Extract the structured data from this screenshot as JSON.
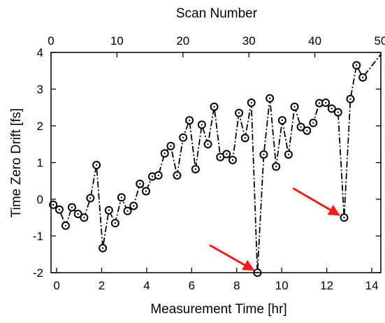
{
  "chart_data": {
    "type": "line",
    "title": "",
    "xlabel": "Measurement Time [hr]",
    "ylabel": "Time Zero Drift [fs]",
    "x2label": "Scan Number",
    "xlim": [
      -0.25,
      14.4
    ],
    "ylim": [
      -2,
      4
    ],
    "x2lim": [
      0,
      50
    ],
    "xticks": [
      0,
      2,
      4,
      6,
      8,
      10,
      12,
      14
    ],
    "yticks": [
      -2,
      -1,
      0,
      1,
      2,
      3,
      4
    ],
    "x2ticks": [
      0,
      10,
      20,
      30,
      40,
      50
    ],
    "xtick_labels": [
      "0",
      "2",
      "4",
      "6",
      "8",
      "10",
      "12",
      "14"
    ],
    "ytick_labels": [
      "-2",
      "-1",
      "0",
      "1",
      "2",
      "3",
      "4"
    ],
    "x2tick_labels": [
      "0",
      "10",
      "20",
      "30",
      "40",
      "50"
    ],
    "grid": false,
    "legend": "none",
    "series": [
      {
        "line_style": "dash-dot",
        "marker": "open-circle",
        "color": "#000000",
        "points": [
          [
            -0.15,
            -0.15
          ],
          [
            0.12,
            -0.28
          ],
          [
            0.4,
            -0.72
          ],
          [
            0.68,
            -0.22
          ],
          [
            0.95,
            -0.4
          ],
          [
            1.22,
            -0.5
          ],
          [
            1.5,
            0.03
          ],
          [
            1.77,
            0.93
          ],
          [
            2.05,
            -1.33
          ],
          [
            2.32,
            -0.3
          ],
          [
            2.6,
            -0.65
          ],
          [
            2.88,
            0.05
          ],
          [
            3.15,
            -0.32
          ],
          [
            3.42,
            -0.18
          ],
          [
            3.7,
            0.42
          ],
          [
            3.97,
            0.22
          ],
          [
            4.25,
            0.62
          ],
          [
            4.52,
            0.65
          ],
          [
            4.8,
            1.25
          ],
          [
            5.07,
            1.45
          ],
          [
            5.35,
            0.65
          ],
          [
            5.62,
            1.68
          ],
          [
            5.9,
            2.15
          ],
          [
            6.17,
            0.82
          ],
          [
            6.45,
            2.03
          ],
          [
            6.72,
            1.5
          ],
          [
            7.0,
            2.52
          ],
          [
            7.27,
            1.15
          ],
          [
            7.55,
            1.23
          ],
          [
            7.82,
            1.07
          ],
          [
            8.1,
            2.35
          ],
          [
            8.37,
            1.67
          ],
          [
            8.65,
            2.63
          ],
          [
            8.92,
            -2.0
          ],
          [
            9.2,
            1.22
          ],
          [
            9.47,
            2.75
          ],
          [
            9.75,
            0.89
          ],
          [
            10.02,
            2.15
          ],
          [
            10.3,
            1.22
          ],
          [
            10.57,
            2.52
          ],
          [
            10.85,
            1.97
          ],
          [
            11.12,
            1.87
          ],
          [
            11.4,
            2.08
          ],
          [
            11.67,
            2.62
          ],
          [
            11.95,
            2.63
          ],
          [
            12.22,
            2.47
          ],
          [
            12.5,
            2.37
          ],
          [
            12.77,
            -0.5
          ],
          [
            13.05,
            2.73
          ],
          [
            13.32,
            3.65
          ],
          [
            13.6,
            3.32
          ]
        ],
        "line_extends_to": [
          14.4,
          3.95
        ]
      }
    ],
    "annotations": [
      {
        "type": "arrow",
        "color": "#ee1c1c",
        "from": [
          6.8,
          -1.25
        ],
        "to": [
          8.75,
          -1.93
        ]
      },
      {
        "type": "arrow",
        "color": "#ee1c1c",
        "from": [
          10.5,
          0.3
        ],
        "to": [
          12.55,
          -0.43
        ]
      }
    ]
  }
}
